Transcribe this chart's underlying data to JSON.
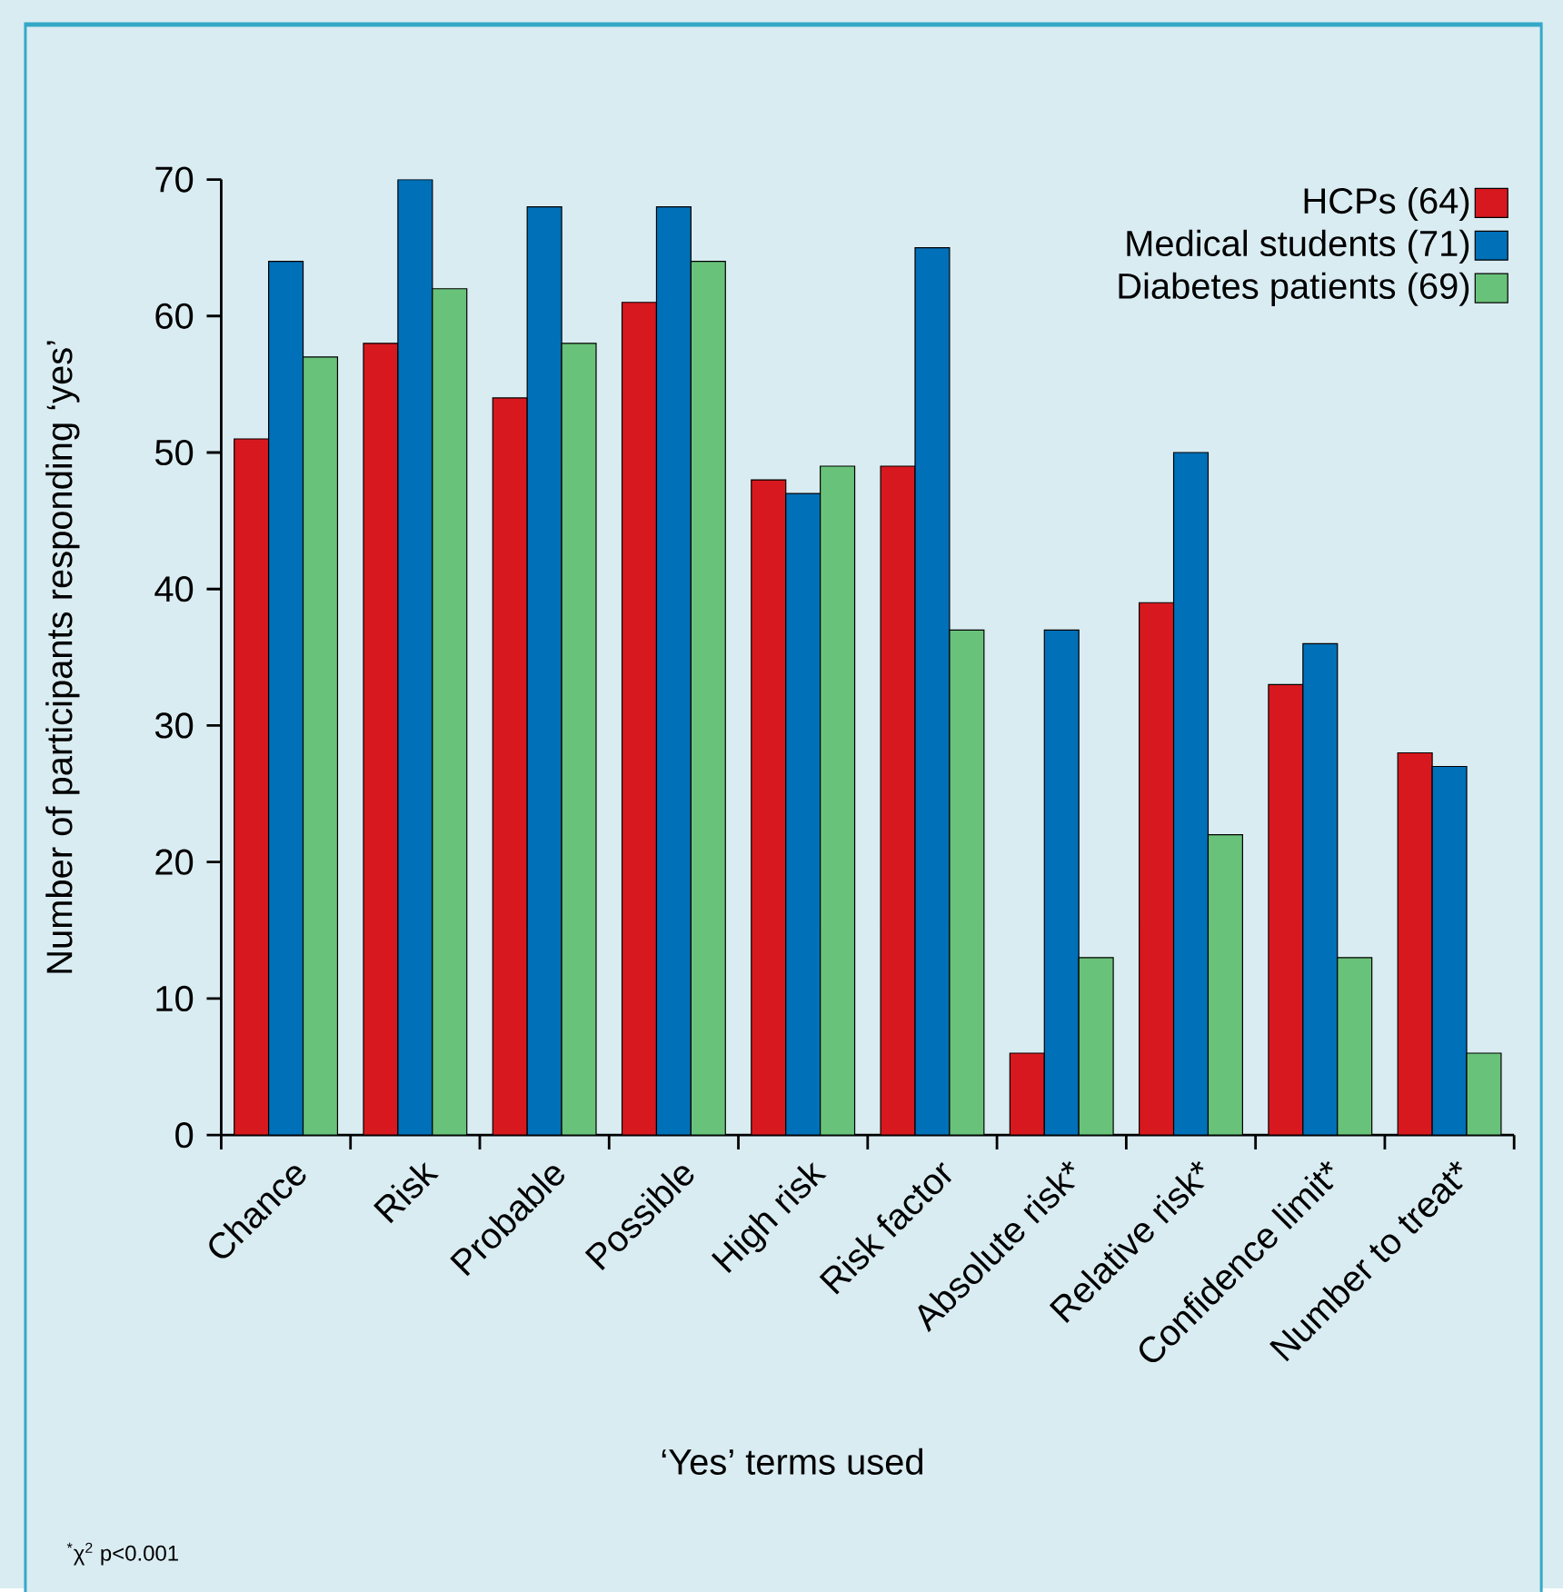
{
  "chart_data": {
    "type": "bar",
    "xlabel": "‘Yes’ terms used",
    "ylabel": "Number of participants responding ‘yes’",
    "annotations": [
      "$^{*}$χ$^{2}$ p<0.001"
    ],
    "categories": [
      "Chance",
      "Risk",
      "Probable",
      "Possible",
      "High risk",
      "Risk factor",
      "Absolute risk*",
      "Relative risk*",
      "Confidence limit*",
      "Number to treat*"
    ],
    "series": [
      {
        "name": "HCPs (64)",
        "color": "#d7191f",
        "values": [
          51,
          58,
          54,
          61,
          48,
          49,
          6,
          39,
          33,
          28
        ]
      },
      {
        "name": "Medical students (71)",
        "color": "#0070b8",
        "values": [
          64,
          70,
          68,
          68,
          47,
          65,
          37,
          50,
          36,
          27
        ]
      },
      {
        "name": "Diabetes patients (69)",
        "color": "#69c27a",
        "values": [
          57,
          62,
          58,
          64,
          49,
          37,
          13,
          22,
          13,
          6
        ]
      }
    ],
    "ylim": [
      0,
      70
    ],
    "yticks": [
      0,
      10,
      20,
      30,
      40,
      50,
      60,
      70
    ],
    "legend": "top right"
  }
}
